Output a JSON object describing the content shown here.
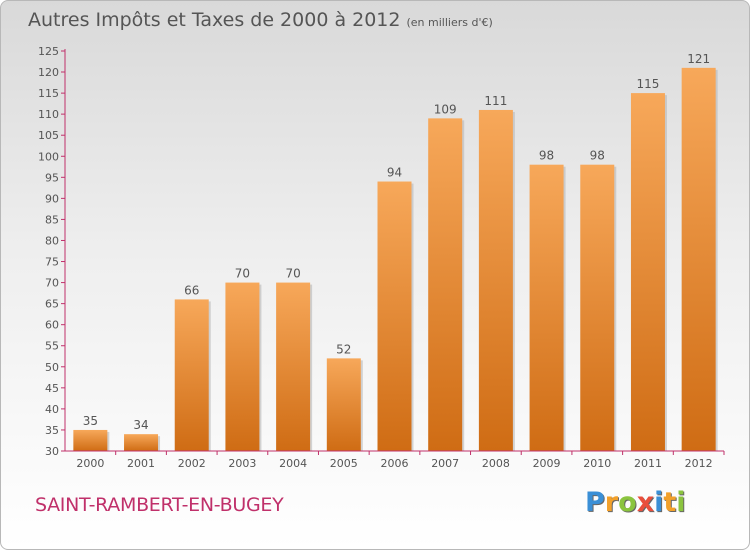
{
  "title": "Autres Impôts et Taxes de 2000 à 2012",
  "unit": "(en milliers d'€)",
  "commune": "SAINT-RAMBERT-EN-BUGEY",
  "logo": {
    "letters": [
      {
        "char": "P",
        "color": "#3a8fd6"
      },
      {
        "char": "r",
        "color": "#f2a02a"
      },
      {
        "char": "o",
        "color": "#8bc43f"
      },
      {
        "char": "x",
        "color": "#e94e3c"
      },
      {
        "char": "i",
        "color": "#3a8fd6"
      },
      {
        "char": "t",
        "color": "#f2a02a"
      },
      {
        "char": "i",
        "color": "#8bc43f"
      }
    ]
  },
  "colors": {
    "bar_light": "#f7a85a",
    "bar_dark": "#cf6c14",
    "axis": "#c0306a",
    "text": "#555555"
  },
  "chart_data": {
    "type": "bar",
    "categories": [
      "2000",
      "2001",
      "2002",
      "2003",
      "2004",
      "2005",
      "2006",
      "2007",
      "2008",
      "2009",
      "2010",
      "2011",
      "2012"
    ],
    "values": [
      35,
      34,
      66,
      70,
      70,
      52,
      94,
      109,
      111,
      98,
      98,
      115,
      121
    ],
    "ylim": [
      30,
      125
    ],
    "yticks": [
      30,
      35,
      40,
      45,
      50,
      55,
      60,
      65,
      70,
      75,
      80,
      85,
      90,
      95,
      100,
      105,
      110,
      115,
      120,
      125
    ],
    "grid": false,
    "legend": "none"
  }
}
